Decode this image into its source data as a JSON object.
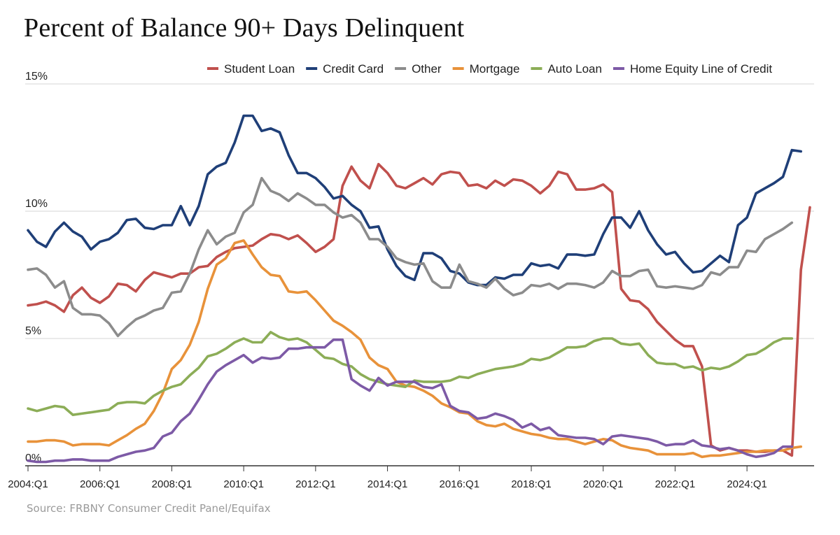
{
  "chart_data": {
    "type": "line",
    "title": "Percent of Balance 90+ Days Delinquent",
    "source": "Source: FRBNY Consumer Credit Panel/Equifax",
    "x_start": "2004:Q1",
    "x_tick_labels": [
      "2004:Q1",
      "2006:Q1",
      "2008:Q1",
      "2010:Q1",
      "2012:Q1",
      "2014:Q1",
      "2016:Q1",
      "2018:Q1",
      "2020:Q1",
      "2022:Q1",
      "2024:Q1"
    ],
    "y_tick_labels": [
      "0%",
      "5%",
      "10%",
      "15%"
    ],
    "y_ticks": [
      0,
      5,
      10,
      15
    ],
    "ylim": [
      0,
      15
    ],
    "grid": true,
    "legend_position": "top",
    "series": [
      {
        "name": "Student Loan",
        "color": "#c0504d",
        "values": [
          6.3,
          6.35,
          6.45,
          6.3,
          6.05,
          6.7,
          7.0,
          6.6,
          6.4,
          6.65,
          7.15,
          7.1,
          6.85,
          7.3,
          7.6,
          7.5,
          7.4,
          7.55,
          7.55,
          7.8,
          7.85,
          8.2,
          8.4,
          8.55,
          8.6,
          8.65,
          8.9,
          9.1,
          9.05,
          8.9,
          9.05,
          8.75,
          8.4,
          8.6,
          8.9,
          11.0,
          11.75,
          11.2,
          10.9,
          11.85,
          11.5,
          11.0,
          10.9,
          11.1,
          11.3,
          11.05,
          11.45,
          11.55,
          11.5,
          11.0,
          11.05,
          10.9,
          11.2,
          11.0,
          11.25,
          11.2,
          11.0,
          10.7,
          11.0,
          11.55,
          11.45,
          10.85,
          10.85,
          10.9,
          11.05,
          10.75,
          6.95,
          6.5,
          6.45,
          6.15,
          5.65,
          5.3,
          4.95,
          4.7,
          4.7,
          3.9,
          0.8,
          0.6,
          0.7,
          0.6,
          0.6,
          0.55,
          0.55,
          0.6,
          0.6,
          0.4,
          7.7,
          10.15
        ]
      },
      {
        "name": "Credit Card",
        "color": "#1f3f78",
        "values": [
          9.25,
          8.8,
          8.6,
          9.2,
          9.55,
          9.2,
          9.0,
          8.5,
          8.8,
          8.9,
          9.15,
          9.65,
          9.7,
          9.35,
          9.3,
          9.45,
          9.45,
          10.2,
          9.45,
          10.2,
          11.45,
          11.75,
          11.9,
          12.7,
          13.75,
          13.75,
          13.15,
          13.25,
          13.1,
          12.2,
          11.5,
          11.5,
          11.3,
          10.95,
          10.5,
          10.6,
          10.25,
          10.0,
          9.35,
          9.4,
          8.5,
          7.85,
          7.45,
          7.3,
          8.35,
          8.35,
          8.15,
          7.65,
          7.55,
          7.2,
          7.1,
          7.1,
          7.4,
          7.35,
          7.5,
          7.5,
          7.95,
          7.85,
          7.9,
          7.75,
          8.3,
          8.3,
          8.25,
          8.3,
          9.1,
          9.75,
          9.75,
          9.35,
          10.0,
          9.25,
          8.7,
          8.3,
          8.4,
          7.95,
          7.6,
          7.65,
          7.95,
          8.25,
          8.0,
          9.45,
          9.75,
          10.7,
          10.9,
          11.1,
          11.35,
          12.4,
          12.35
        ]
      },
      {
        "name": "Other",
        "color": "#8c8c8c",
        "values": [
          7.7,
          7.75,
          7.5,
          7.0,
          7.25,
          6.2,
          5.95,
          5.95,
          5.9,
          5.6,
          5.1,
          5.45,
          5.75,
          5.9,
          6.1,
          6.2,
          6.8,
          6.85,
          7.55,
          8.5,
          9.25,
          8.7,
          9.0,
          9.15,
          9.95,
          10.25,
          11.3,
          10.8,
          10.65,
          10.4,
          10.7,
          10.5,
          10.25,
          10.25,
          9.95,
          9.75,
          9.85,
          9.55,
          8.9,
          8.9,
          8.6,
          8.15,
          8.0,
          7.9,
          7.95,
          7.25,
          7.0,
          7.0,
          7.9,
          7.25,
          7.15,
          7.0,
          7.35,
          6.95,
          6.7,
          6.8,
          7.1,
          7.05,
          7.15,
          6.95,
          7.15,
          7.15,
          7.1,
          7.0,
          7.2,
          7.65,
          7.45,
          7.45,
          7.65,
          7.7,
          7.05,
          7.0,
          7.05,
          7.0,
          6.95,
          7.1,
          7.6,
          7.5,
          7.8,
          7.8,
          8.45,
          8.4,
          8.9,
          9.1,
          9.3,
          9.55
        ]
      },
      {
        "name": "Mortgage",
        "color": "#e8923a",
        "values": [
          0.95,
          0.95,
          1.0,
          1.0,
          0.95,
          0.8,
          0.85,
          0.85,
          0.85,
          0.8,
          1.0,
          1.2,
          1.45,
          1.65,
          2.15,
          2.85,
          3.8,
          4.15,
          4.75,
          5.65,
          6.95,
          7.9,
          8.15,
          8.75,
          8.85,
          8.3,
          7.8,
          7.5,
          7.45,
          6.85,
          6.8,
          6.85,
          6.5,
          6.1,
          5.7,
          5.5,
          5.25,
          4.95,
          4.25,
          3.95,
          3.8,
          3.3,
          3.15,
          3.1,
          2.95,
          2.75,
          2.45,
          2.3,
          2.1,
          2.05,
          1.75,
          1.6,
          1.55,
          1.65,
          1.45,
          1.35,
          1.25,
          1.2,
          1.1,
          1.05,
          1.05,
          0.95,
          0.85,
          0.95,
          1.05,
          1.0,
          0.8,
          0.7,
          0.65,
          0.6,
          0.45,
          0.45,
          0.45,
          0.45,
          0.5,
          0.35,
          0.4,
          0.4,
          0.45,
          0.5,
          0.55,
          0.55,
          0.6,
          0.6,
          0.6,
          0.7,
          0.75
        ]
      },
      {
        "name": "Auto Loan",
        "color": "#8cad57",
        "values": [
          2.25,
          2.15,
          2.25,
          2.35,
          2.3,
          2.0,
          2.05,
          2.1,
          2.15,
          2.2,
          2.45,
          2.5,
          2.5,
          2.45,
          2.75,
          2.95,
          3.1,
          3.2,
          3.55,
          3.85,
          4.3,
          4.4,
          4.6,
          4.85,
          5.0,
          4.85,
          4.85,
          5.25,
          5.05,
          4.95,
          5.0,
          4.85,
          4.55,
          4.25,
          4.2,
          4.0,
          3.9,
          3.6,
          3.4,
          3.3,
          3.2,
          3.15,
          3.1,
          3.35,
          3.3,
          3.3,
          3.3,
          3.35,
          3.5,
          3.45,
          3.6,
          3.7,
          3.8,
          3.85,
          3.9,
          4.0,
          4.2,
          4.15,
          4.25,
          4.45,
          4.65,
          4.65,
          4.7,
          4.9,
          5.0,
          5.0,
          4.8,
          4.75,
          4.8,
          4.35,
          4.05,
          4.0,
          4.0,
          3.85,
          3.9,
          3.75,
          3.85,
          3.8,
          3.9,
          4.1,
          4.35,
          4.4,
          4.6,
          4.85,
          5.0,
          5.0
        ]
      },
      {
        "name": "Home Equity Line of Credit",
        "color": "#7d5aa6",
        "values": [
          0.2,
          0.15,
          0.15,
          0.2,
          0.2,
          0.25,
          0.25,
          0.2,
          0.2,
          0.2,
          0.35,
          0.45,
          0.55,
          0.6,
          0.7,
          1.15,
          1.3,
          1.75,
          2.05,
          2.6,
          3.2,
          3.7,
          3.95,
          4.15,
          4.35,
          4.05,
          4.25,
          4.2,
          4.25,
          4.6,
          4.6,
          4.65,
          4.65,
          4.65,
          4.95,
          4.95,
          3.4,
          3.15,
          2.95,
          3.45,
          3.15,
          3.3,
          3.3,
          3.3,
          3.1,
          3.05,
          3.2,
          2.35,
          2.15,
          2.1,
          1.85,
          1.9,
          2.05,
          1.95,
          1.8,
          1.5,
          1.65,
          1.4,
          1.5,
          1.2,
          1.15,
          1.1,
          1.1,
          1.05,
          0.85,
          1.15,
          1.2,
          1.15,
          1.1,
          1.05,
          0.95,
          0.8,
          0.85,
          0.85,
          1.0,
          0.8,
          0.75,
          0.65,
          0.7,
          0.6,
          0.45,
          0.35,
          0.4,
          0.5,
          0.75,
          0.75
        ]
      }
    ]
  }
}
